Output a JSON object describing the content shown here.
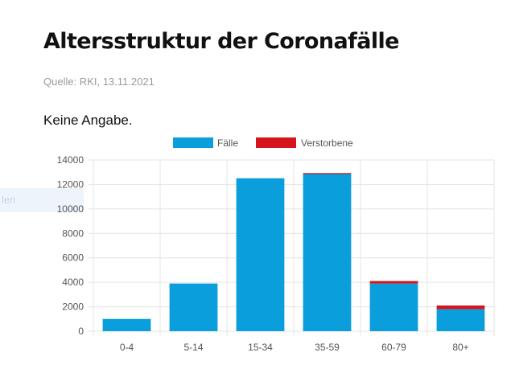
{
  "header": {
    "title": "Altersstruktur der Coronafälle",
    "source": "Quelle: RKI, 13.11.2021",
    "subtitle": "Keine Angabe."
  },
  "side_tab": {
    "label": "len"
  },
  "colors": {
    "faelle": "#0a9edc",
    "verstorbene": "#d4151c",
    "grid": "#e4e4e4"
  },
  "chart_data": {
    "type": "bar",
    "stacked": true,
    "categories": [
      "0-4",
      "5-14",
      "15-34",
      "35-59",
      "60-79",
      "80+"
    ],
    "series": [
      {
        "name": "Fälle",
        "color": "#0a9edc",
        "values": [
          1000,
          3900,
          12500,
          12850,
          3900,
          1800
        ]
      },
      {
        "name": "Verstorbene",
        "color": "#d4151c",
        "values": [
          0,
          0,
          5,
          80,
          200,
          300
        ]
      }
    ],
    "ylim": [
      0,
      14000
    ],
    "yticks": [
      "0",
      "2000",
      "4000",
      "6000",
      "8000",
      "10000",
      "12000",
      "14000"
    ],
    "grid": true,
    "legend_position": "top"
  }
}
